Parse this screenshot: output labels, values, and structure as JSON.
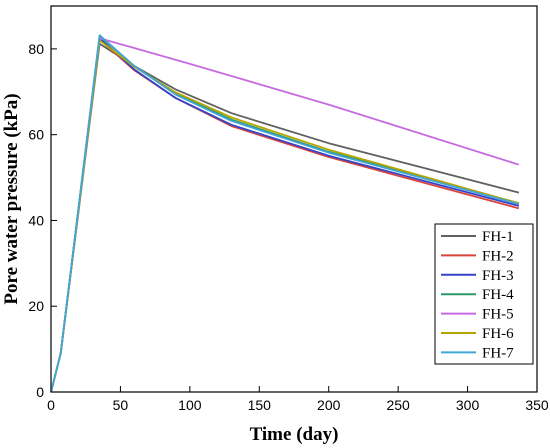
{
  "chart_data": {
    "type": "line",
    "xlabel": "Time (day)",
    "ylabel": "Pore water pressure (kPa)",
    "xlim": [
      0,
      350
    ],
    "ylim": [
      0,
      90
    ],
    "xticks": [
      0,
      50,
      100,
      150,
      200,
      250,
      300,
      350
    ],
    "yticks": [
      0,
      20,
      40,
      60,
      80
    ],
    "grid": false,
    "legend_position": "bottom-right",
    "series": [
      {
        "name": "FH-1",
        "color": "#606060",
        "x": [
          0,
          7,
          35,
          60,
          90,
          130,
          200,
          337
        ],
        "y": [
          0,
          9,
          81.2,
          76,
          70.5,
          65,
          58,
          46.5
        ]
      },
      {
        "name": "FH-2",
        "color": "#d9443f",
        "x": [
          0,
          7,
          35,
          60,
          90,
          130,
          200,
          337
        ],
        "y": [
          0,
          9,
          82.2,
          75,
          68.5,
          62,
          54.8,
          42.8
        ]
      },
      {
        "name": "FH-3",
        "color": "#3344c8",
        "x": [
          0,
          7,
          35,
          60,
          90,
          130,
          200,
          337
        ],
        "y": [
          0,
          9,
          82.5,
          75.2,
          68.5,
          62.3,
          55.1,
          43.4
        ]
      },
      {
        "name": "FH-4",
        "color": "#2a9a6a",
        "x": [
          0,
          7,
          35,
          60,
          90,
          130,
          200,
          337
        ],
        "y": [
          0,
          9,
          83,
          76,
          69.5,
          63.5,
          56,
          44
        ]
      },
      {
        "name": "FH-5",
        "color": "#c66ae0",
        "x": [
          0,
          7,
          35,
          100,
          200,
          337
        ],
        "y": [
          0,
          9,
          82.5,
          76.5,
          67,
          53
        ]
      },
      {
        "name": "FH-6",
        "color": "#b6a400",
        "x": [
          0,
          7,
          35,
          60,
          90,
          130,
          200,
          337
        ],
        "y": [
          0,
          9,
          82,
          75.8,
          69.8,
          64,
          56.5,
          44
        ]
      },
      {
        "name": "FH-7",
        "color": "#3fa6d6",
        "x": [
          0,
          7,
          35,
          60,
          90,
          130,
          200,
          337
        ],
        "y": [
          0,
          9,
          83.2,
          76,
          69.3,
          63.2,
          55.8,
          43.8
        ]
      }
    ]
  }
}
